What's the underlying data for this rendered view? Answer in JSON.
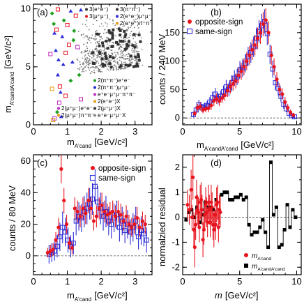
{
  "colors": {
    "opposite": "#e8141e",
    "same": "#2b2bd6",
    "black": "#000000"
  },
  "chart_data": [
    {
      "id": "a",
      "type": "scatter",
      "panel_label": "(a)",
      "xlabel_main": "m",
      "xlabel_sub": "A'cand",
      "xlabel_unit": "[GeV/c²]",
      "ylabel_main": "m",
      "ylabel_sub": "A'candA'cand",
      "ylabel_unit": "[GeV/c²]",
      "xlim": [
        0,
        3.5
      ],
      "ylim": [
        0,
        10.4
      ],
      "xticks": [
        "0",
        "1",
        "2",
        "3"
      ],
      "yticks": [
        "0",
        "5",
        "10"
      ],
      "legend_left": [
        "2(μ⁺μ⁻)e⁺e⁻",
        "2(μ⁺μ⁻)π⁺π⁻"
      ],
      "legend_top": [
        "3(e⁺e⁻)",
        "3(μ⁺μ⁻)",
        "3(π⁺π⁻)",
        "2(e⁺e⁻)μ⁺μ⁻",
        "2(e⁺e⁻)π⁺π⁻"
      ],
      "legend_right": [
        "2(π⁺π⁻)e⁺e⁻",
        "2(π⁺π⁻)μ⁺μ⁻",
        "e⁺e⁻μ⁺μ⁻π⁺π⁻",
        "2(e⁺e⁻)X",
        "2(μ⁺μ⁻)X",
        "e⁺e⁻μ⁺μ⁻X"
      ],
      "points": [
        [
          0.55,
          9.6,
          "g"
        ],
        [
          0.6,
          8.7,
          "g"
        ],
        [
          0.62,
          7.9,
          "b"
        ],
        [
          0.66,
          6.4,
          "b"
        ],
        [
          0.5,
          6.1,
          "m"
        ],
        [
          0.74,
          5.6,
          "b"
        ],
        [
          0.55,
          3.1,
          "o"
        ],
        [
          0.78,
          3.3,
          "r"
        ],
        [
          0.72,
          4.3,
          "b"
        ],
        [
          0.76,
          1.9,
          "m"
        ],
        [
          0.7,
          1.1,
          "g"
        ],
        [
          0.62,
          0.55,
          "m"
        ],
        [
          0.58,
          0.42,
          "o"
        ],
        [
          0.9,
          9.0,
          "g"
        ],
        [
          0.85,
          7.6,
          "b"
        ],
        [
          0.95,
          6.2,
          "r"
        ],
        [
          0.88,
          5.2,
          "b"
        ],
        [
          0.8,
          2.8,
          "b"
        ],
        [
          0.95,
          2.5,
          "r"
        ],
        [
          0.82,
          0.7,
          "b"
        ],
        [
          1.0,
          8.6,
          "r"
        ],
        [
          1.05,
          6.9,
          "r"
        ],
        [
          1.1,
          9.8,
          "b"
        ],
        [
          1.15,
          5.4,
          "b"
        ],
        [
          1.1,
          3.8,
          "g"
        ],
        [
          1.25,
          9.4,
          "r"
        ],
        [
          1.2,
          8.1,
          "g"
        ],
        [
          1.3,
          6.7,
          "m"
        ],
        [
          1.4,
          9.9,
          "b"
        ],
        [
          1.35,
          4.3,
          "g"
        ],
        [
          1.4,
          2.2,
          "m"
        ],
        [
          0.72,
          9.95,
          "r"
        ],
        [
          0.68,
          8.2,
          "r"
        ],
        [
          1.18,
          7.3,
          "g"
        ]
      ]
    },
    {
      "id": "b",
      "type": "line",
      "panel_label": "(b)",
      "xlabel_main": "m",
      "xlabel_sub": "A'candA'cand",
      "xlabel_unit": "[GeV/c²]",
      "ylabel": "counts / 240 MeV",
      "xlim": [
        0,
        10.4
      ],
      "ylim": [
        -12,
        200
      ],
      "xticks": [
        "0",
        "5",
        "10"
      ],
      "yticks": [
        "0",
        "50",
        "100",
        "150"
      ],
      "legend": [
        "opposite-sign",
        "same-sign"
      ],
      "series": [
        {
          "name": "opposite-sign",
          "x": [
            1.06,
            1.3,
            1.54,
            1.78,
            2.02,
            2.26,
            2.5,
            2.74,
            2.98,
            3.22,
            3.46,
            3.7,
            3.94,
            4.18,
            4.42,
            4.66,
            4.9,
            5.14,
            5.38,
            5.62,
            5.86,
            6.1,
            6.34,
            6.58,
            6.82,
            7.06,
            7.3,
            7.54,
            7.78,
            8.02,
            8.26,
            8.5,
            8.74,
            8.98,
            9.22,
            9.46,
            9.7
          ],
          "y": [
            8,
            18,
            20,
            14,
            16,
            17,
            22,
            30,
            34,
            30,
            35,
            40,
            48,
            55,
            60,
            65,
            75,
            82,
            90,
            100,
            110,
            120,
            128,
            140,
            150,
            165,
            172,
            150,
            110,
            90,
            68,
            50,
            42,
            28,
            18,
            10,
            5
          ],
          "err": [
            5,
            7,
            7,
            6,
            6,
            7,
            8,
            9,
            9,
            9,
            9,
            10,
            11,
            12,
            12,
            13,
            14,
            15,
            15,
            16,
            17,
            18,
            18,
            19,
            20,
            21,
            21,
            20,
            17,
            15,
            13,
            11,
            10,
            9,
            7,
            5,
            4
          ]
        },
        {
          "name": "same-sign",
          "x": [
            0.94,
            1.18,
            1.42,
            1.66,
            1.9,
            2.14,
            2.38,
            2.62,
            2.86,
            3.1,
            3.34,
            3.58,
            3.82,
            4.06,
            4.3,
            4.54,
            4.78,
            5.02,
            5.26,
            5.5,
            5.74,
            5.98,
            6.22,
            6.46,
            6.7,
            6.94,
            7.18,
            7.42,
            7.66,
            7.9,
            8.14,
            8.38,
            8.62,
            8.86,
            9.1,
            9.34,
            9.58,
            9.82
          ],
          "y": [
            6,
            14,
            24,
            18,
            20,
            22,
            28,
            36,
            42,
            34,
            38,
            46,
            55,
            50,
            62,
            70,
            72,
            85,
            88,
            96,
            108,
            115,
            125,
            140,
            152,
            162,
            170,
            148,
            112,
            86,
            62,
            52,
            38,
            24,
            16,
            8,
            4,
            2
          ],
          "err": [
            5,
            7,
            8,
            7,
            7,
            8,
            9,
            10,
            11,
            10,
            10,
            11,
            12,
            12,
            13,
            14,
            14,
            15,
            16,
            16,
            17,
            18,
            18,
            19,
            20,
            21,
            21,
            20,
            17,
            15,
            13,
            12,
            10,
            8,
            6,
            5,
            4,
            3
          ]
        }
      ]
    },
    {
      "id": "c",
      "type": "line",
      "panel_label": "(c)",
      "xlabel_main": "m",
      "xlabel_sub": "A'cand",
      "xlabel_unit": "[GeV/c²]",
      "ylabel": "counts / 80 MeV",
      "xlim": [
        0,
        3.5
      ],
      "ylim": [
        -12,
        64
      ],
      "xticks": [
        "0",
        "1",
        "2",
        "3"
      ],
      "yticks": [
        "0",
        "20",
        "40",
        "60"
      ],
      "legend": [
        "opposite-sign",
        "same-sign"
      ],
      "series": [
        {
          "name": "opposite-sign",
          "x": [
            0.42,
            0.5,
            0.58,
            0.66,
            0.74,
            0.82,
            0.9,
            0.98,
            1.06,
            1.14,
            1.22,
            1.3,
            1.38,
            1.46,
            1.54,
            1.62,
            1.7,
            1.78,
            1.86,
            1.94,
            2.02,
            2.1,
            2.18,
            2.26,
            2.34,
            2.42,
            2.5,
            2.58,
            2.66,
            2.74,
            2.82,
            2.9,
            2.98,
            3.06,
            3.14,
            3.22,
            3.3
          ],
          "y": [
            2,
            3,
            4,
            10,
            18,
            55,
            35,
            20,
            8,
            5,
            30,
            28,
            25,
            30,
            27,
            35,
            30,
            22,
            25,
            30,
            32,
            28,
            26,
            27,
            28,
            25,
            28,
            26,
            22,
            25,
            20,
            18,
            20,
            24,
            18,
            22,
            20
          ],
          "err": [
            3,
            4,
            4,
            5,
            6,
            9,
            8,
            6,
            4,
            4,
            7,
            7,
            7,
            7,
            7,
            8,
            7,
            6,
            7,
            7,
            8,
            7,
            7,
            7,
            7,
            7,
            7,
            7,
            6,
            7,
            6,
            6,
            6,
            7,
            6,
            6,
            6
          ]
        },
        {
          "name": "same-sign",
          "x": [
            0.46,
            0.54,
            0.62,
            0.7,
            0.78,
            0.86,
            0.94,
            1.02,
            1.1,
            1.18,
            1.26,
            1.34,
            1.42,
            1.5,
            1.58,
            1.66,
            1.74,
            1.82,
            1.9,
            1.98,
            2.06,
            2.14,
            2.22,
            2.3,
            2.38,
            2.46,
            2.54,
            2.62,
            2.7,
            2.78,
            2.86,
            2.94,
            3.02,
            3.1,
            3.18,
            3.26,
            3.34
          ],
          "y": [
            1,
            2,
            3,
            6,
            12,
            18,
            15,
            10,
            6,
            8,
            22,
            25,
            24,
            28,
            30,
            33,
            36,
            44,
            34,
            30,
            25,
            28,
            22,
            20,
            24,
            26,
            18,
            22,
            16,
            20,
            15,
            18,
            22,
            12,
            16,
            14,
            10
          ],
          "err": [
            6,
            6,
            6,
            7,
            9,
            10,
            9,
            8,
            7,
            7,
            9,
            9,
            9,
            10,
            10,
            10,
            10,
            11,
            10,
            10,
            9,
            10,
            9,
            9,
            9,
            9,
            9,
            9,
            8,
            9,
            8,
            9,
            9,
            8,
            9,
            8,
            8
          ]
        }
      ]
    },
    {
      "id": "d",
      "type": "line",
      "panel_label": "(d)",
      "xlabel_main": "m",
      "xlabel_unit": "[GeV/c²]",
      "ylabel": "normalzied residual",
      "xlim": [
        0,
        10.4
      ],
      "ylim": [
        -2.3,
        2.5
      ],
      "xticks": [
        "0",
        "5",
        "10"
      ],
      "yticks": [
        "-2",
        "-1",
        "0",
        "1",
        "2"
      ],
      "legend": [
        {
          "main": "m",
          "sub": "A'cand"
        },
        {
          "main": "m",
          "sub": "A'candA'cand"
        }
      ],
      "series": [
        {
          "name": "A'cand",
          "x": [
            0.42,
            0.58,
            0.74,
            0.82,
            0.9,
            0.98,
            1.06,
            1.14,
            1.22,
            1.3,
            1.38,
            1.46,
            1.54,
            1.62,
            1.7,
            1.78,
            1.86,
            1.94,
            2.02,
            2.1,
            2.18,
            2.26,
            2.34,
            2.42,
            2.5,
            2.58,
            2.66,
            2.74,
            2.82,
            2.9,
            2.98,
            3.06,
            3.14,
            3.22,
            3.3
          ],
          "y": [
            0.5,
            0.3,
            1.1,
            0.0,
            1.6,
            -0.5,
            -1.2,
            -0.3,
            0.8,
            0.3,
            0.2,
            -0.4,
            0.6,
            0.7,
            0.3,
            -0.9,
            -0.5,
            0.1,
            0.5,
            0.2,
            -0.2,
            0.6,
            0.3,
            -0.2,
            0.6,
            0.4,
            -0.3,
            -0.5,
            0.1,
            -0.3,
            0.5,
            0.6,
            -0.4,
            0.3,
            0.2
          ],
          "err": [
            0.6,
            0.6,
            0.8,
            0.5,
            0.9,
            0.7,
            0.8,
            0.6,
            0.7,
            0.6,
            0.6,
            0.6,
            0.7,
            0.7,
            0.6,
            0.7,
            0.6,
            0.6,
            0.7,
            0.6,
            0.6,
            0.7,
            0.6,
            0.6,
            0.7,
            0.6,
            0.6,
            0.7,
            0.6,
            0.6,
            0.7,
            0.7,
            0.6,
            0.6,
            0.6
          ]
        },
        {
          "name": "A'candA'cand",
          "x": [
            0.3,
            0.54,
            0.78,
            1.02,
            1.26,
            1.5,
            1.74,
            1.98,
            2.22,
            2.46,
            2.7,
            2.94,
            3.18,
            3.42,
            3.66,
            3.9,
            4.14,
            4.38,
            4.62,
            4.86,
            5.1,
            5.34,
            5.58,
            5.82,
            6.06,
            6.3,
            6.54,
            6.78,
            7.02,
            7.26,
            7.5,
            7.74,
            7.98,
            8.22,
            8.46,
            8.7,
            8.94,
            9.18,
            9.42,
            9.66,
            9.9
          ],
          "y": [
            -0.1,
            0.2,
            0.3,
            0.0,
            0.4,
            -0.2,
            0.1,
            0.6,
            0.4,
            0.4,
            0.3,
            0.7,
            0.3,
            0.9,
            1.0,
            1.0,
            0.7,
            0.7,
            0.8,
            0.8,
            0.9,
            0.7,
            0.8,
            -0.3,
            -0.7,
            -0.6,
            -0.6,
            -0.4,
            -0.1,
            -0.6,
            -1.2,
            2.2,
            0.1,
            0.4,
            -1.2,
            -1.1,
            -0.5,
            0.5,
            -0.4,
            0.3,
            0.0
          ]
        }
      ]
    }
  ]
}
